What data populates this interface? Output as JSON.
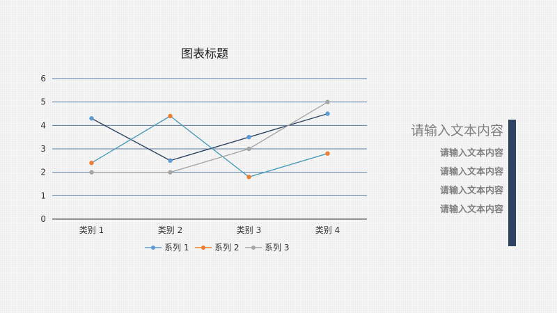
{
  "chart_data": {
    "type": "line",
    "title": "图表标题",
    "xlabel": "",
    "ylabel": "",
    "categories": [
      "类别 1",
      "类别 2",
      "类别 3",
      "类别 4"
    ],
    "ylim": [
      0,
      6
    ],
    "yticks": [
      0,
      1,
      2,
      3,
      4,
      5,
      6
    ],
    "grid": true,
    "legend": "bottom",
    "series": [
      {
        "name": "系列 1",
        "values": [
          4.3,
          2.5,
          3.5,
          4.5
        ],
        "line_color": "#2f4462",
        "marker_color": "#5b9bd5"
      },
      {
        "name": "系列 2",
        "values": [
          2.4,
          4.4,
          1.8,
          2.8
        ],
        "line_color": "#4a9cbb",
        "marker_color": "#ed7d31"
      },
      {
        "name": "系列 3",
        "values": [
          2.0,
          2.0,
          3.0,
          5.0
        ],
        "line_color": "#a5a5a5",
        "marker_color": "#a5a5a5"
      }
    ],
    "gridline_color": "#5a7ba3"
  },
  "side_panel": {
    "heading": "请输入文本内容",
    "items": [
      "请输入文本内容",
      "请输入文本内容",
      "请输入文本内容",
      "请输入文本内容"
    ],
    "bar_color": "#2f4462"
  }
}
